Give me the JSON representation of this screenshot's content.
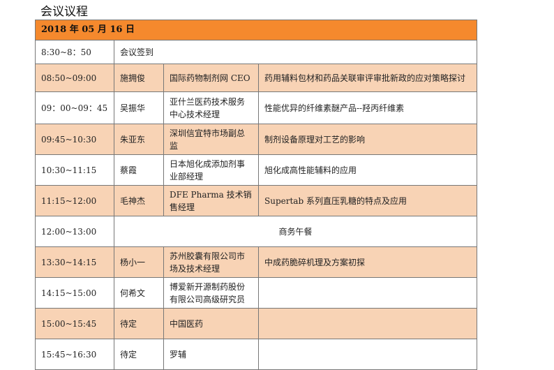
{
  "title": "会议议程",
  "date": "2018 年 05 月 16 日",
  "colors": {
    "header": "#F5892D",
    "highlight_row": "#F8D3B5"
  },
  "rows": [
    {
      "time": "8:30~8：50",
      "span": "会议签到",
      "peach": false
    },
    {
      "time": "08:50~09:00",
      "speaker": "施拥俊",
      "title": "国际药物制剂网 CEO",
      "topic": "药用辅料包材和药品关联审评审批新政的应对策略探讨",
      "peach": true
    },
    {
      "time": "09：00~09：45",
      "speaker": "吴振华",
      "title": "亚什兰医药技术服务中心技术经理",
      "topic": "性能优异的纤维素醚产品--羟丙纤维素",
      "peach": false
    },
    {
      "time": "09:45~10:30",
      "speaker": "朱亚东",
      "title": "深圳信宜特市场副总监",
      "topic": "制剂设备原理对工艺的影响",
      "peach": true
    },
    {
      "time": "10:30~11:15",
      "speaker": "蔡霞",
      "title": "日本旭化成添加剂事业部经理",
      "topic": "旭化成高性能辅料的应用",
      "peach": false
    },
    {
      "time": "11:15~12:00",
      "speaker": "毛神杰",
      "title": "DFE Pharma 技术销售经理",
      "topic": "Supertab 系列直压乳糖的特点及应用",
      "peach": true
    },
    {
      "time": "12:00~13:00",
      "span": "商务午餐",
      "peach": false
    },
    {
      "time": "13:30~14:15",
      "speaker": "杨小一",
      "title": "苏州胶囊有限公司市场及技术经理",
      "topic": "中成药脆碎机理及方案初探",
      "peach": true
    },
    {
      "time": "14:15~15:00",
      "speaker": "何希文",
      "title": "博爱新开源制药股份有限公司高级研究员",
      "topic": "",
      "peach": false
    },
    {
      "time": "15:00~15:45",
      "speaker": "待定",
      "title": "中国医药",
      "topic": "",
      "peach": true
    },
    {
      "time": "15:45~16:30",
      "speaker": "待定",
      "title": "罗辅",
      "topic": "",
      "peach": false
    }
  ]
}
